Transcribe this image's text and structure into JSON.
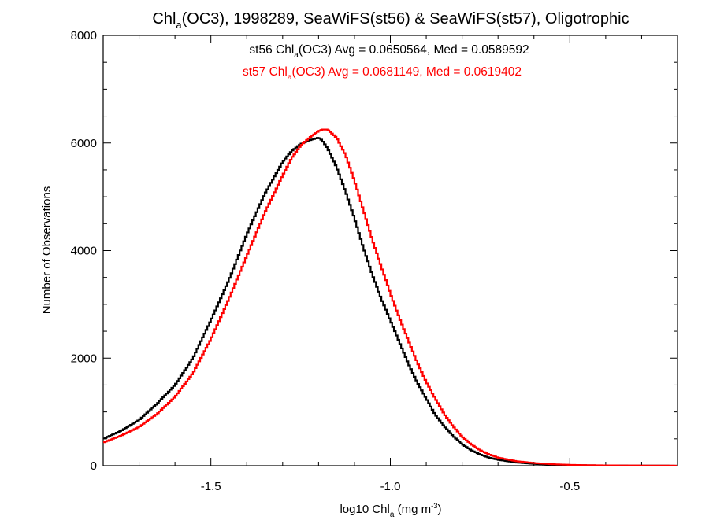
{
  "chart_data": {
    "type": "line",
    "title": {
      "main": "Chl",
      "sub": "a",
      "rest": "(OC3), 1998289, SeaWiFS(st56) & SeaWiFS(st57), Oligotrophic"
    },
    "xlabel": {
      "main": "log10 Chl",
      "sub": "a",
      "mid": " (mg m",
      "sup": "-3",
      "end": ")"
    },
    "ylabel": "Number of Observations",
    "xlim": [
      -1.8,
      -0.2
    ],
    "ylim": [
      0,
      8000
    ],
    "x_ticks": [
      -1.5,
      -1.0,
      -0.5
    ],
    "x_tick_labels": [
      "-1.5",
      "-1.0",
      "-0.5"
    ],
    "y_ticks": [
      0,
      2000,
      4000,
      6000,
      8000
    ],
    "y_tick_labels": [
      "0",
      "2000",
      "4000",
      "6000",
      "8000"
    ],
    "step_style": "histogram",
    "series": [
      {
        "name": "st56",
        "color": "#000000",
        "legend": {
          "pre": "st56 Chl",
          "sub": "a",
          "post": "(OC3) Avg = 0.0650564, Med = 0.0589592"
        },
        "x": [
          -1.8,
          -1.75,
          -1.7,
          -1.65,
          -1.6,
          -1.55,
          -1.5,
          -1.45,
          -1.4,
          -1.35,
          -1.3,
          -1.275,
          -1.25,
          -1.225,
          -1.2,
          -1.19,
          -1.175,
          -1.15,
          -1.125,
          -1.1,
          -1.075,
          -1.05,
          -1.025,
          -1.0,
          -0.975,
          -0.95,
          -0.925,
          -0.9,
          -0.875,
          -0.85,
          -0.825,
          -0.8,
          -0.775,
          -0.75,
          -0.725,
          -0.7,
          -0.65,
          -0.6,
          -0.55,
          -0.5,
          -0.45,
          -0.4,
          -0.3,
          -0.2
        ],
        "y": [
          500,
          650,
          850,
          1150,
          1500,
          2000,
          2700,
          3450,
          4300,
          5050,
          5650,
          5850,
          5980,
          6050,
          6100,
          6050,
          5900,
          5550,
          5100,
          4600,
          4050,
          3550,
          3100,
          2700,
          2300,
          1900,
          1550,
          1250,
          950,
          730,
          550,
          400,
          290,
          210,
          150,
          110,
          60,
          35,
          20,
          12,
          8,
          5,
          2,
          1
        ]
      },
      {
        "name": "st57",
        "color": "#ff0000",
        "legend": {
          "pre": "st57 Chl",
          "sub": "a",
          "post": "(OC3) Avg = 0.0681149, Med = 0.0619402"
        },
        "x": [
          -1.8,
          -1.75,
          -1.7,
          -1.65,
          -1.6,
          -1.55,
          -1.5,
          -1.45,
          -1.4,
          -1.35,
          -1.3,
          -1.275,
          -1.25,
          -1.225,
          -1.2,
          -1.19,
          -1.175,
          -1.15,
          -1.125,
          -1.1,
          -1.075,
          -1.05,
          -1.025,
          -1.0,
          -0.975,
          -0.95,
          -0.925,
          -0.9,
          -0.875,
          -0.85,
          -0.825,
          -0.8,
          -0.775,
          -0.75,
          -0.725,
          -0.7,
          -0.65,
          -0.6,
          -0.55,
          -0.5,
          -0.45,
          -0.4,
          -0.3,
          -0.2
        ],
        "y": [
          430,
          560,
          720,
          960,
          1280,
          1720,
          2350,
          3100,
          3900,
          4700,
          5400,
          5720,
          5950,
          6100,
          6220,
          6250,
          6250,
          6100,
          5780,
          5300,
          4750,
          4200,
          3700,
          3200,
          2750,
          2330,
          1920,
          1560,
          1250,
          960,
          730,
          540,
          400,
          290,
          210,
          150,
          85,
          50,
          28,
          16,
          10,
          6,
          3,
          1
        ]
      }
    ]
  }
}
